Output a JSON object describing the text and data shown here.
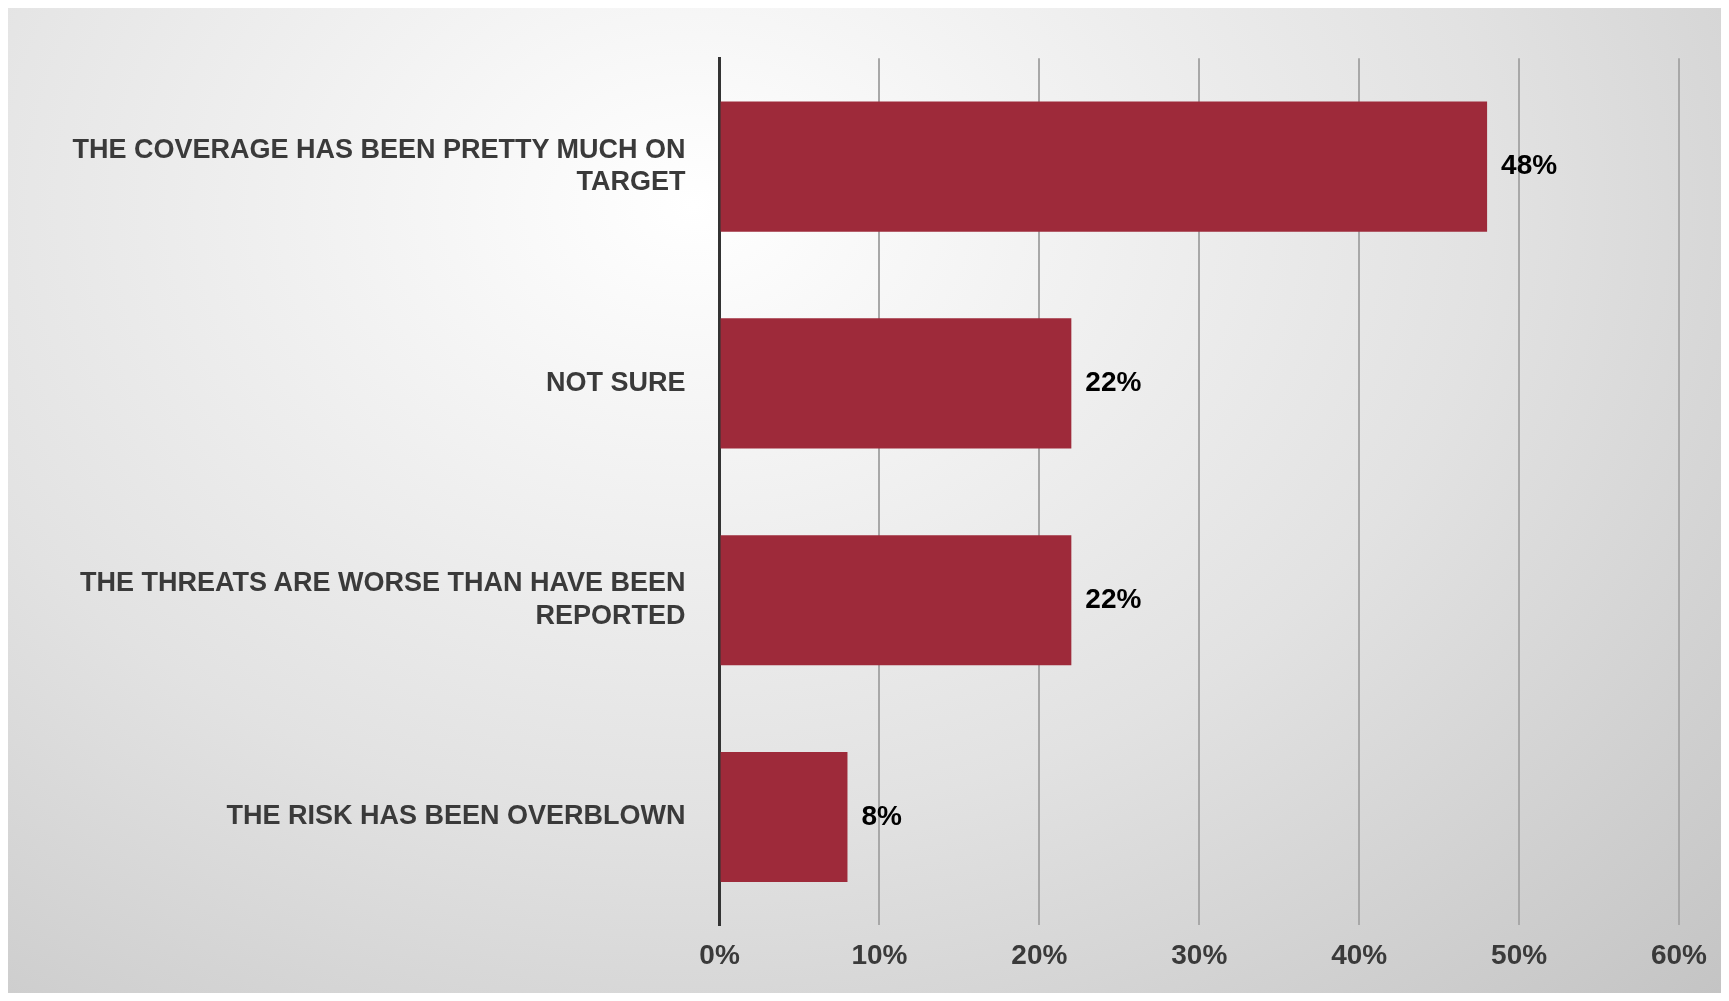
{
  "chart_data": {
    "type": "bar",
    "orientation": "horizontal",
    "categories": [
      "THE COVERAGE HAS BEEN PRETTY MUCH ON TARGET",
      "NOT SURE",
      "THE THREATS ARE WORSE THAN HAVE BEEN REPORTED",
      "THE RISK HAS BEEN OVERBLOWN"
    ],
    "values": [
      48,
      22,
      22,
      8
    ],
    "value_labels": [
      "48%",
      "22%",
      "22%",
      "8%"
    ],
    "color": "#9e2a3a",
    "xlim": [
      0,
      60
    ],
    "xticks": [
      {
        "value": 0,
        "label": "0%"
      },
      {
        "value": 10,
        "label": "10%"
      },
      {
        "value": 20,
        "label": "20%"
      },
      {
        "value": 30,
        "label": "30%"
      },
      {
        "value": 40,
        "label": "40%"
      },
      {
        "value": 50,
        "label": "50%"
      },
      {
        "value": 60,
        "label": "60%"
      }
    ],
    "grid": "x",
    "legend": false
  }
}
